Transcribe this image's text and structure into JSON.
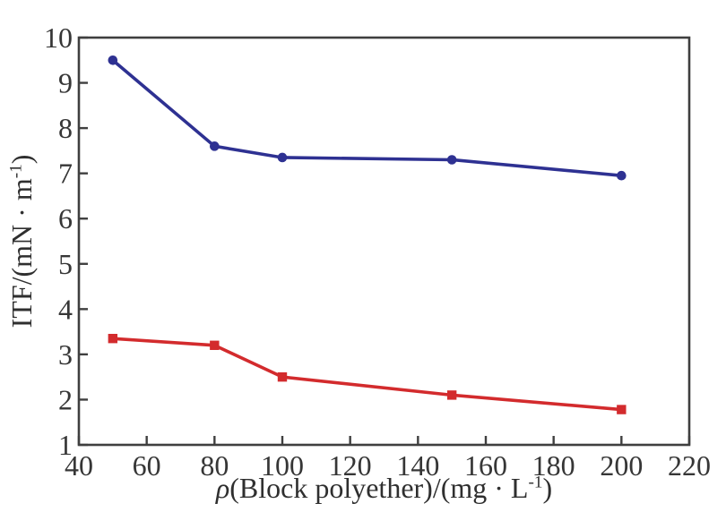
{
  "figure": {
    "background": "#ffffff",
    "axis_color": "#3f3f3f",
    "tick_label_color": "#363636"
  },
  "chart_data": {
    "type": "line",
    "title": "",
    "xlabel": {
      "symbol": "ρ",
      "text": "(Block polyether)/(mg · L",
      "sup": "-1",
      "close": ")"
    },
    "ylabel": {
      "text": "ITF/(mN · m",
      "sup": "-1",
      "close": ")"
    },
    "xlim": [
      40,
      220
    ],
    "ylim": [
      1,
      10
    ],
    "x_ticks": [
      40,
      60,
      80,
      100,
      120,
      140,
      160,
      180,
      200,
      220
    ],
    "y_ticks": [
      1,
      2,
      3,
      4,
      5,
      6,
      7,
      8,
      9,
      10
    ],
    "grid": false,
    "legend": "none",
    "series": [
      {
        "name": "upper-blue-series",
        "color": "#2e3192",
        "marker": "circle",
        "x": [
          50,
          80,
          100,
          150,
          200
        ],
        "y": [
          9.5,
          7.6,
          7.35,
          7.3,
          6.95
        ]
      },
      {
        "name": "lower-red-series",
        "color": "#d32b2d",
        "marker": "square",
        "x": [
          50,
          80,
          100,
          150,
          200
        ],
        "y": [
          3.35,
          3.2,
          2.5,
          2.1,
          1.78
        ]
      }
    ]
  }
}
